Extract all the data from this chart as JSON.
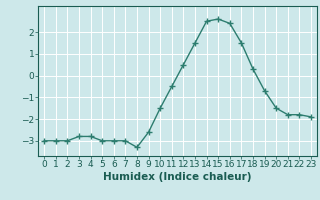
{
  "x": [
    0,
    1,
    2,
    3,
    4,
    5,
    6,
    7,
    8,
    9,
    10,
    11,
    12,
    13,
    14,
    15,
    16,
    17,
    18,
    19,
    20,
    21,
    22,
    23
  ],
  "y": [
    -3.0,
    -3.0,
    -3.0,
    -2.8,
    -2.8,
    -3.0,
    -3.0,
    -3.0,
    -3.3,
    -2.6,
    -1.5,
    -0.5,
    0.5,
    1.5,
    2.5,
    2.6,
    2.4,
    1.5,
    0.3,
    -0.7,
    -1.5,
    -1.8,
    -1.8,
    -1.9
  ],
  "line_color": "#2d7d6f",
  "marker": "+",
  "marker_size": 4,
  "marker_lw": 1.0,
  "line_width": 1.0,
  "bg_color": "#cde8ea",
  "grid_color": "#ffffff",
  "grid_lw": 0.7,
  "xlabel": "Humidex (Indice chaleur)",
  "xlim": [
    -0.5,
    23.5
  ],
  "ylim": [
    -3.7,
    3.2
  ],
  "yticks": [
    -3,
    -2,
    -1,
    0,
    1,
    2
  ],
  "xticks": [
    0,
    1,
    2,
    3,
    4,
    5,
    6,
    7,
    8,
    9,
    10,
    11,
    12,
    13,
    14,
    15,
    16,
    17,
    18,
    19,
    20,
    21,
    22,
    23
  ],
  "label_color": "#1a5c52",
  "tick_color": "#1a5c52",
  "axis_color": "#1a5c52",
  "xlabel_fontsize": 7.5,
  "tick_fontsize": 6.5,
  "spine_lw": 0.8
}
